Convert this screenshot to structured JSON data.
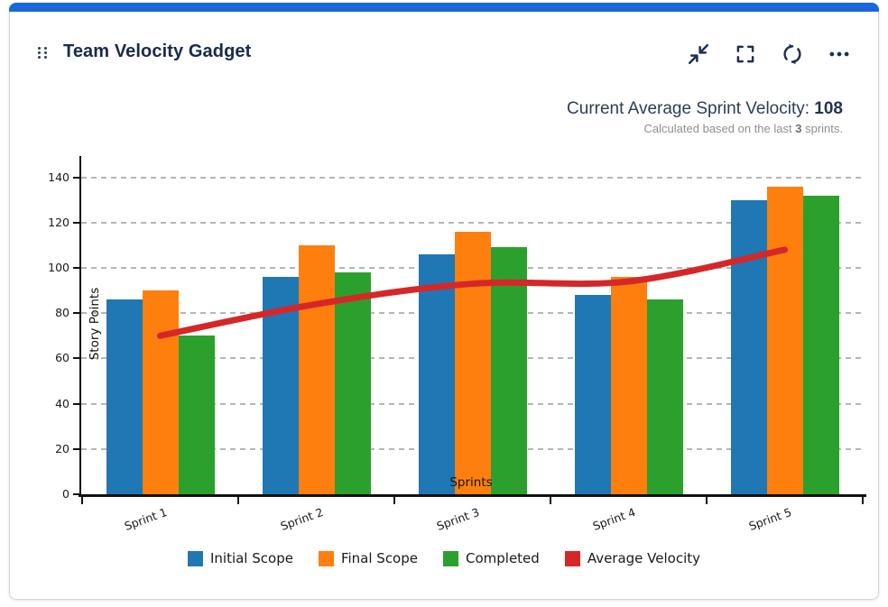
{
  "card": {
    "title": "Team Velocity Gadget",
    "accent_color": "#1868db",
    "toolbar": {
      "buttons": [
        {
          "icon": "collapse-icon"
        },
        {
          "icon": "fullscreen-icon"
        },
        {
          "icon": "refresh-icon"
        },
        {
          "icon": "more-options-icon"
        }
      ]
    }
  },
  "summary": {
    "label": "Current Average Sprint Velocity:",
    "value": "108",
    "note_prefix": "Calculated based on the last",
    "note_value": "3",
    "note_suffix": "sprints."
  },
  "chart_data": {
    "type": "bar",
    "title": "",
    "categories": [
      "Sprint 1",
      "Sprint 2",
      "Sprint 3",
      "Sprint 4",
      "Sprint 5"
    ],
    "series": [
      {
        "name": "Initial Scope",
        "type": "bar",
        "color": "#1f77b4",
        "values": [
          86,
          96,
          106,
          88,
          130
        ]
      },
      {
        "name": "Final Scope",
        "type": "bar",
        "color": "#ff7f0e",
        "values": [
          90,
          110,
          116,
          96,
          136
        ]
      },
      {
        "name": "Completed",
        "type": "bar",
        "color": "#2ca02c",
        "values": [
          70,
          98,
          109,
          86,
          132
        ]
      },
      {
        "name": "Average Velocity",
        "type": "line",
        "color": "#d62728",
        "values": [
          70,
          84,
          93,
          94,
          108
        ]
      }
    ],
    "xlabel": "Sprints",
    "ylabel": "Story Points",
    "ylim": [
      0,
      140
    ],
    "yticks": [
      0,
      20,
      40,
      60,
      80,
      100,
      120,
      140
    ],
    "grid": true,
    "grid_style": "dashed",
    "legend_position": "bottom"
  }
}
